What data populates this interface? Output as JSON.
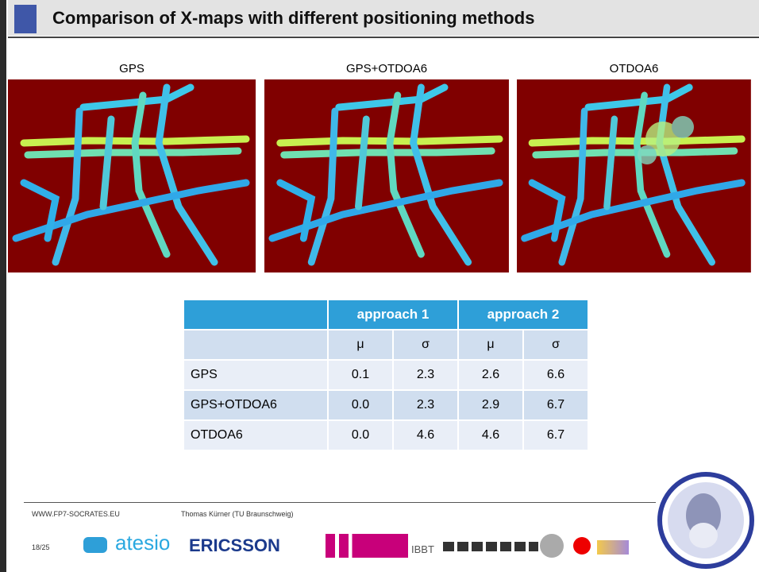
{
  "header": {
    "title": "Comparison of X-maps with different positioning methods"
  },
  "maps": [
    {
      "label": "GPS"
    },
    {
      "label": "GPS+OTDOA6"
    },
    {
      "label": "OTDOA6"
    }
  ],
  "table": {
    "group_headers": [
      "approach 1",
      "approach 2"
    ],
    "sub_headers": [
      "μ",
      "σ",
      "μ",
      "σ"
    ],
    "rows": [
      [
        "GPS",
        "0.1",
        "2.3",
        "2.6",
        "6.6"
      ],
      [
        "GPS+OTDOA6",
        "0.0",
        "2.3",
        "2.9",
        "6.7"
      ],
      [
        "OTDOA6",
        "0.0",
        "4.6",
        "4.6",
        "6.7"
      ]
    ]
  },
  "footer": {
    "website": "WWW.FP7-SOCRATES.EU",
    "author": "Thomas Kürner (TU Braunschweig)",
    "page": "18/25",
    "logos": [
      "atesio",
      "ERICSSON",
      "IBBT"
    ]
  }
}
